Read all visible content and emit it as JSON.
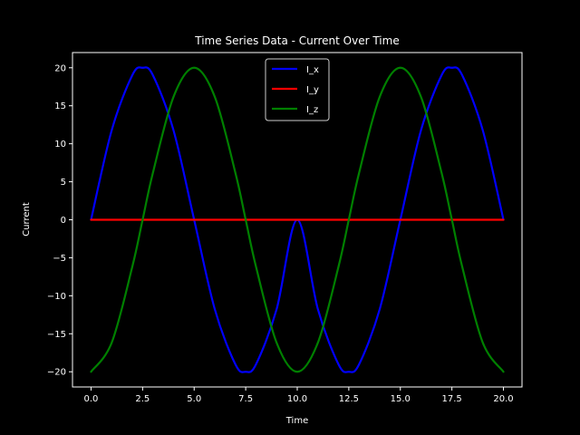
{
  "chart_data": {
    "type": "line",
    "title": "Time Series Data - Current Over Time",
    "xlabel": "Time",
    "ylabel": "Current",
    "xlim": [
      -0.9,
      20.9
    ],
    "ylim": [
      -22,
      22
    ],
    "x_ticks": [
      0.0,
      2.5,
      5.0,
      7.5,
      10.0,
      12.5,
      15.0,
      17.5,
      20.0
    ],
    "x_tick_labels": [
      "0.0",
      "2.5",
      "5.0",
      "7.5",
      "10.0",
      "12.5",
      "15.0",
      "17.5",
      "20.0"
    ],
    "y_ticks": [
      -20,
      -15,
      -10,
      -5,
      0,
      5,
      10,
      15,
      20
    ],
    "y_tick_labels": [
      "−20",
      "−15",
      "−10",
      "−5",
      "0",
      "5",
      "10",
      "15",
      "20"
    ],
    "grid": false,
    "legend_position": "top-center",
    "background": "#000000",
    "foreground": "#ffffff",
    "x": [
      0,
      1,
      2,
      2.5,
      3,
      4,
      5,
      6,
      7,
      7.5,
      8,
      9,
      10,
      11,
      12,
      12.5,
      13,
      14,
      15,
      16,
      17,
      17.5,
      18,
      19,
      20
    ],
    "series": [
      {
        "name": "I_x",
        "color": "#0000ff",
        "values": [
          0,
          11.76,
          19.02,
          20,
          19.02,
          11.76,
          0,
          -11.76,
          -19.02,
          -20,
          -19.02,
          -11.76,
          0,
          -11.76,
          -19.02,
          -20,
          -19.02,
          -11.76,
          0,
          11.76,
          19.02,
          20,
          19.02,
          11.76,
          0
        ]
      },
      {
        "name": "I_y",
        "color": "#ff0000",
        "values": [
          0,
          0,
          0,
          0,
          0,
          0,
          0,
          0,
          0,
          0,
          0,
          0,
          0,
          0,
          0,
          0,
          0,
          0,
          0,
          0,
          0,
          0,
          0,
          0,
          0
        ]
      },
      {
        "name": "I_z",
        "color": "#008000",
        "values": [
          -20,
          -16.18,
          -6.18,
          0,
          6.18,
          16.18,
          20,
          16.18,
          6.18,
          0,
          -6.18,
          -16.18,
          -20,
          -16.18,
          -6.18,
          0,
          6.18,
          16.18,
          20,
          16.18,
          6.18,
          0,
          -6.18,
          -16.18,
          -20
        ]
      }
    ]
  }
}
